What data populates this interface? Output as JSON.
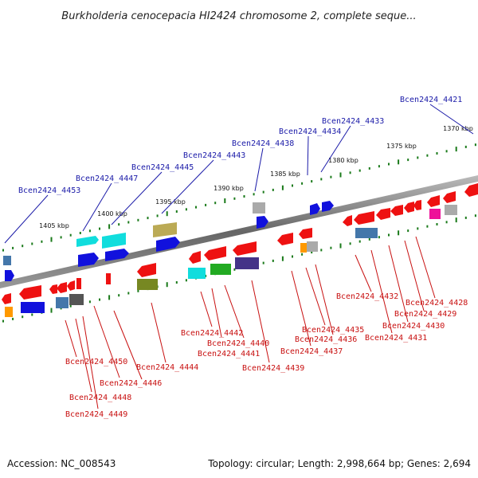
{
  "title": "Burkholderia cenocepacia HI2424 chromosome 2, complete seque...",
  "footer": {
    "accession": "Accession: NC_008543",
    "topology": "Topology: circular; Length: 2,998,664 bp; Genes: 2,694"
  },
  "kbp_ticks": [
    "1405 kbp",
    "1400 kbp",
    "1395 kbp",
    "1390 kbp",
    "1385 kbp",
    "1380 kbp",
    "1375 kbp",
    "1370 kbp"
  ],
  "top_labels": [
    "Bcen2424_4453",
    "Bcen2424_4447",
    "Bcen2424_4445",
    "Bcen2424_4443",
    "Bcen2424_4438",
    "Bcen2424_4434",
    "Bcen2424_4433",
    "Bcen2424_4421"
  ],
  "bottom_labels": [
    "Bcen2424_4450",
    "Bcen2424_4446",
    "Bcen2424_4448",
    "Bcen2424_4449",
    "Bcen2424_4444",
    "Bcen2424_4442",
    "Bcen2424_4440",
    "Bcen2424_4441",
    "Bcen2424_4439",
    "Bcen2424_4435",
    "Bcen2424_4436",
    "Bcen2424_4437",
    "Bcen2424_4432",
    "Bcen2424_4428",
    "Bcen2424_4429",
    "Bcen2424_4430",
    "Bcen2424_4431"
  ],
  "colors": {
    "cds": "#ee1111",
    "trna": "#1111dd",
    "cyan": "#11dddd",
    "olive": "#778822",
    "khaki": "#bbaa55",
    "purple": "#443388",
    "green": "#22aa22",
    "steel": "#4477aa",
    "gray": "#aaaaaa",
    "orange": "#ff9900",
    "magenta": "#ee1199",
    "backbone": "#888888",
    "label_top": "#1a1aa8",
    "label_bottom": "#c81010"
  }
}
